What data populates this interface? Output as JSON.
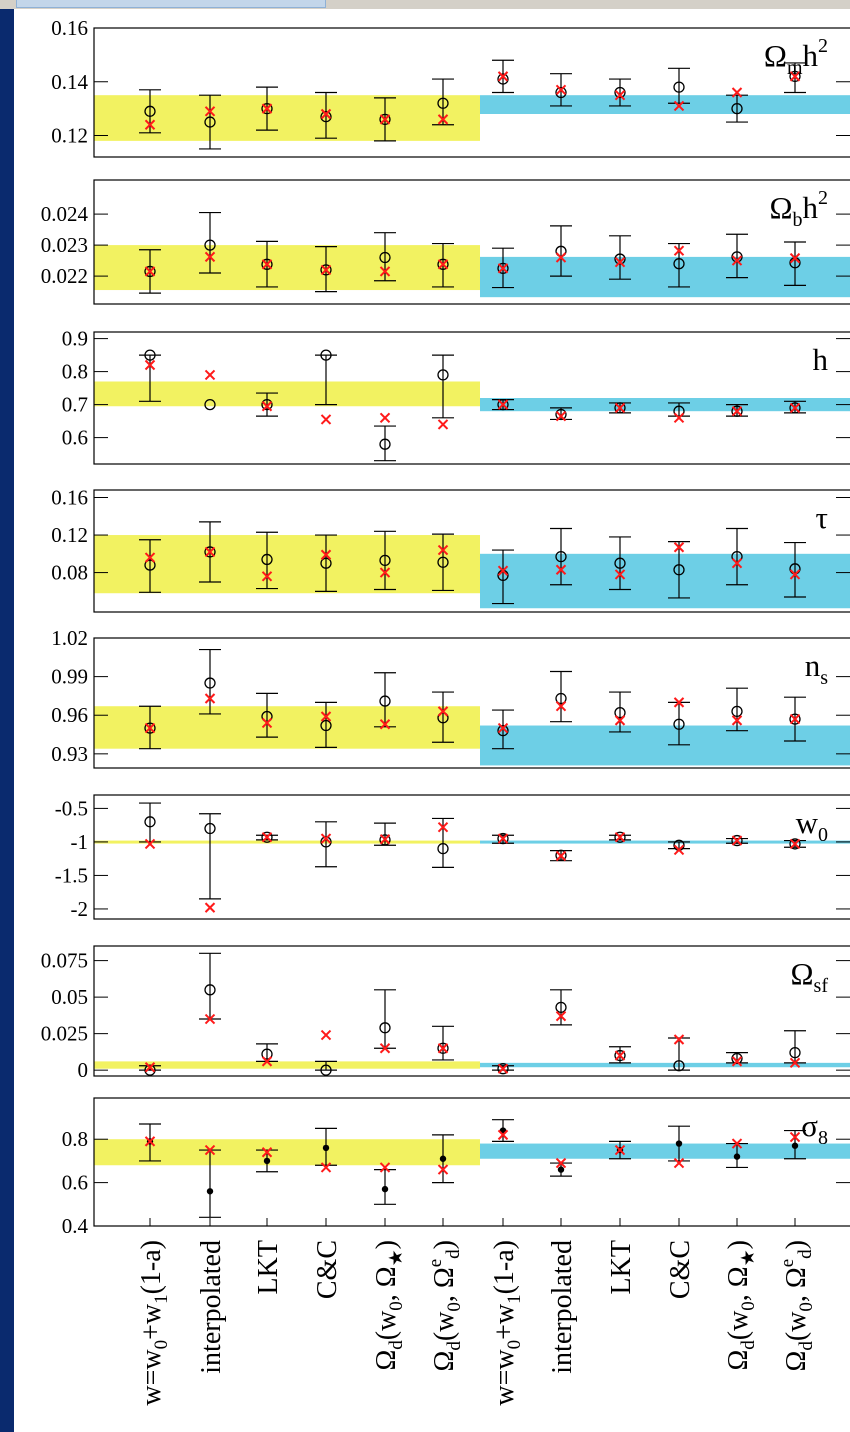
{
  "colors": {
    "yellow": "#f2f261",
    "cyan": "#6dcfe6",
    "black_marker": "#000000",
    "red_marker": "#ff1a1a"
  },
  "chart_data": {
    "type": "scatter",
    "categories": [
      "w=w₀+w₁(1-a)",
      "interpolated",
      "LKT",
      "C&C",
      "Ωd(w₀, Ω★)",
      "Ωd(w₀, Ωdᵉ)",
      "w=w₀+w₁(1-a)",
      "interpolated",
      "LKT",
      "C&C",
      "Ωd(w₀, Ω★)",
      "Ωd(w₀, Ωdᵉ)"
    ],
    "category_labels": [
      {
        "main": "w=w",
        "sub1": "0",
        "mid": "+w",
        "sub2": "1",
        "tail": "(1-a)"
      },
      {
        "main": "interpolated"
      },
      {
        "main": "LKT"
      },
      {
        "main": "C&C"
      },
      {
        "main": "Ω",
        "sub1": "d",
        "mid": "(w",
        "sub2": "0",
        "tail": ", Ω",
        "sub3": "★",
        "end": ")"
      },
      {
        "main": "Ω",
        "sub1": "d",
        "mid": "(w",
        "sub2": "0",
        "tail": ", Ω",
        "sup3": "e",
        "sub3": "d",
        "end": ")"
      },
      {
        "main": "w=w",
        "sub1": "0",
        "mid": "+w",
        "sub2": "1",
        "tail": "(1-a)"
      },
      {
        "main": "interpolated"
      },
      {
        "main": "LKT"
      },
      {
        "main": "C&C"
      },
      {
        "main": "Ω",
        "sub1": "d",
        "mid": "(w",
        "sub2": "0",
        "tail": ", Ω",
        "sub3": "★",
        "end": ")"
      },
      {
        "main": "Ω",
        "sub1": "d",
        "mid": "(w",
        "sub2": "0",
        "tail": ", Ω",
        "sup3": "e",
        "sub3": "d",
        "end": ")"
      }
    ],
    "panels": [
      {
        "label": {
          "main": "Ω",
          "sub": "m",
          "main2": "h",
          "sup": "2"
        },
        "ylim": [
          0.112,
          0.16
        ],
        "ticks": [
          0.12,
          0.14,
          0.16
        ],
        "tick_labels": [
          "0.12",
          "0.14",
          "0.16"
        ],
        "band_left": [
          0.118,
          0.135
        ],
        "band_right": [
          0.128,
          0.135
        ],
        "marker": "circle",
        "values": [
          0.129,
          0.125,
          0.13,
          0.127,
          0.126,
          0.132,
          0.141,
          0.136,
          0.136,
          0.138,
          0.13,
          0.142
        ],
        "err_low": [
          0.121,
          0.115,
          0.122,
          0.119,
          0.118,
          0.124,
          0.136,
          0.131,
          0.131,
          0.132,
          0.125,
          0.136
        ],
        "err_high": [
          0.137,
          0.135,
          0.138,
          0.136,
          0.134,
          0.141,
          0.148,
          0.143,
          0.141,
          0.145,
          0.135,
          0.147
        ],
        "best_fit": [
          0.124,
          0.129,
          0.13,
          0.128,
          0.126,
          0.126,
          0.142,
          0.137,
          0.135,
          0.131,
          0.136,
          0.142
        ]
      },
      {
        "label": {
          "main": "Ω",
          "sub": "b",
          "main2": "h",
          "sup": "2"
        },
        "ylim": [
          0.0211,
          0.0251
        ],
        "ticks": [
          0.022,
          0.023,
          0.024
        ],
        "tick_labels": [
          "0.022",
          "0.023",
          "0.024"
        ],
        "band_left": [
          0.02155,
          0.023
        ],
        "band_right": [
          0.02132,
          0.02262
        ],
        "marker": "circle",
        "values": [
          0.02215,
          0.023,
          0.02238,
          0.0222,
          0.0226,
          0.02238,
          0.02225,
          0.0228,
          0.02255,
          0.0224,
          0.02262,
          0.02243
        ],
        "err_low": [
          0.02145,
          0.0221,
          0.02165,
          0.0215,
          0.02185,
          0.02165,
          0.02163,
          0.022,
          0.0219,
          0.02165,
          0.02195,
          0.0217
        ],
        "err_high": [
          0.02285,
          0.02405,
          0.02312,
          0.02295,
          0.0234,
          0.02305,
          0.0229,
          0.02362,
          0.0233,
          0.02305,
          0.02335,
          0.0231
        ],
        "best_fit": [
          0.02215,
          0.02262,
          0.02238,
          0.0222,
          0.02215,
          0.02238,
          0.02225,
          0.0226,
          0.02245,
          0.02282,
          0.0225,
          0.02258
        ]
      },
      {
        "label": {
          "main": "h"
        },
        "ylim": [
          0.52,
          0.92
        ],
        "ticks": [
          0.6,
          0.7,
          0.8,
          0.9
        ],
        "tick_labels": [
          "0.6",
          "0.7",
          "0.8",
          "0.9"
        ],
        "band_left": [
          0.695,
          0.77
        ],
        "band_right": [
          0.68,
          0.72
        ],
        "marker": "circle",
        "values": [
          0.85,
          0.7,
          0.7,
          0.85,
          0.58,
          0.79,
          0.7,
          0.67,
          0.69,
          0.68,
          0.68,
          0.69
        ],
        "err_low": [
          0.71,
          null,
          0.665,
          0.7,
          0.53,
          0.66,
          0.685,
          0.655,
          0.675,
          0.665,
          0.665,
          0.675
        ],
        "err_high": [
          0.85,
          null,
          0.735,
          0.85,
          0.635,
          0.85,
          0.715,
          0.69,
          0.705,
          0.705,
          0.7,
          0.71
        ],
        "best_fit": [
          0.82,
          0.79,
          0.695,
          0.655,
          0.66,
          0.64,
          0.7,
          0.665,
          0.69,
          0.66,
          0.68,
          0.69
        ]
      },
      {
        "label": {
          "main": "τ"
        },
        "ylim": [
          0.038,
          0.168
        ],
        "ticks": [
          0.08,
          0.12,
          0.16
        ],
        "tick_labels": [
          "0.08",
          "0.12",
          "0.16"
        ],
        "band_left": [
          0.058,
          0.12
        ],
        "band_right": [
          0.042,
          0.1
        ],
        "marker": "circle",
        "values": [
          0.088,
          0.102,
          0.094,
          0.09,
          0.093,
          0.091,
          0.077,
          0.097,
          0.09,
          0.083,
          0.097,
          0.084
        ],
        "err_low": [
          0.059,
          0.07,
          0.063,
          0.06,
          0.062,
          0.061,
          0.047,
          0.067,
          0.062,
          0.053,
          0.067,
          0.054
        ],
        "err_high": [
          0.115,
          0.134,
          0.123,
          0.12,
          0.124,
          0.121,
          0.104,
          0.127,
          0.118,
          0.113,
          0.127,
          0.112
        ],
        "best_fit": [
          0.096,
          0.102,
          0.076,
          0.099,
          0.08,
          0.104,
          0.082,
          0.083,
          0.078,
          0.107,
          0.09,
          0.078
        ]
      },
      {
        "label": {
          "main": "n",
          "sub": "s"
        },
        "ylim": [
          0.919,
          1.02
        ],
        "ticks": [
          0.93,
          0.96,
          0.99,
          1.02
        ],
        "tick_labels": [
          "0.93",
          "0.96",
          "0.99",
          "1.02"
        ],
        "band_left": [
          0.934,
          0.967
        ],
        "band_right": [
          0.921,
          0.952
        ],
        "marker": "circle",
        "values": [
          0.95,
          0.985,
          0.959,
          0.952,
          0.971,
          0.958,
          0.948,
          0.973,
          0.962,
          0.953,
          0.963,
          0.957
        ],
        "err_low": [
          0.934,
          0.961,
          0.943,
          0.935,
          0.951,
          0.939,
          0.934,
          0.955,
          0.947,
          0.937,
          0.948,
          0.94
        ],
        "err_high": [
          0.967,
          1.011,
          0.977,
          0.97,
          0.993,
          0.978,
          0.964,
          0.994,
          0.978,
          0.97,
          0.981,
          0.974
        ],
        "best_fit": [
          0.95,
          0.973,
          0.954,
          0.959,
          0.953,
          0.963,
          0.95,
          0.967,
          0.956,
          0.97,
          0.956,
          0.957
        ]
      },
      {
        "label": {
          "main": "w",
          "sub": "0"
        },
        "ylim": [
          -2.15,
          -0.3
        ],
        "ticks": [
          -2,
          -1.5,
          -1,
          -0.5
        ],
        "tick_labels": [
          "-2",
          "-1.5",
          "-1",
          "-0.5"
        ],
        "band_left": [
          -1.02,
          -0.98
        ],
        "band_right": [
          -1.02,
          -0.98
        ],
        "marker": "circle",
        "values": [
          -0.7,
          -0.8,
          -0.93,
          -1.0,
          -0.97,
          -1.1,
          -0.95,
          -1.2,
          -0.93,
          -1.05,
          -0.98,
          -1.03
        ],
        "err_low": [
          -1.0,
          -1.85,
          -0.97,
          -1.37,
          -1.05,
          -1.38,
          -1.02,
          -1.28,
          -0.97,
          -1.1,
          -1.02,
          -1.08
        ],
        "err_high": [
          -0.42,
          -0.58,
          -0.9,
          -0.7,
          -0.72,
          -0.65,
          -0.9,
          -1.13,
          -0.9,
          -1.0,
          -0.95,
          -0.98
        ],
        "best_fit": [
          -1.03,
          -1.98,
          -0.93,
          -0.95,
          -0.96,
          -0.78,
          -0.95,
          -1.21,
          -0.93,
          -1.12,
          -0.98,
          -1.03
        ]
      },
      {
        "label": {
          "main": "Ω",
          "sub": "sf"
        },
        "ylim": [
          -0.004,
          0.085
        ],
        "ticks": [
          0,
          0.025,
          0.05,
          0.075
        ],
        "tick_labels": [
          "0",
          "0.025",
          "0.05",
          "0.075"
        ],
        "band_left": [
          0.001,
          0.006
        ],
        "band_right": [
          0.002,
          0.005
        ],
        "marker": "circle",
        "values": [
          0.0,
          0.055,
          0.011,
          0.0,
          0.029,
          0.015,
          0.001,
          0.043,
          0.01,
          0.003,
          0.008,
          0.012
        ],
        "err_low": [
          0.0,
          0.035,
          0.006,
          0.0,
          0.015,
          0.007,
          0.0,
          0.031,
          0.005,
          0.0,
          0.005,
          0.005
        ],
        "err_high": [
          0.003,
          0.08,
          0.018,
          0.006,
          0.055,
          0.03,
          0.003,
          0.055,
          0.016,
          0.022,
          0.012,
          0.027
        ],
        "best_fit": [
          0.002,
          0.035,
          0.006,
          0.024,
          0.015,
          0.015,
          0.001,
          0.037,
          0.01,
          0.021,
          0.006,
          0.005
        ]
      },
      {
        "label": {
          "main": "σ",
          "sub": "8"
        },
        "ylim": [
          0.4,
          0.99
        ],
        "ticks": [
          0.4,
          0.6,
          0.8
        ],
        "tick_labels": [
          "0.4",
          "0.6",
          "0.8"
        ],
        "band_left": [
          0.68,
          0.8
        ],
        "band_right": [
          0.71,
          0.78
        ],
        "marker": "dot",
        "values": [
          0.79,
          0.56,
          0.7,
          0.76,
          0.57,
          0.71,
          0.84,
          0.66,
          0.75,
          0.78,
          0.72,
          0.77
        ],
        "err_low": [
          0.7,
          0.44,
          0.65,
          0.68,
          0.5,
          0.6,
          0.79,
          0.63,
          0.71,
          0.7,
          0.67,
          0.71
        ],
        "err_high": [
          0.87,
          0.75,
          0.75,
          0.85,
          0.66,
          0.82,
          0.89,
          0.69,
          0.79,
          0.86,
          0.78,
          0.84
        ],
        "best_fit": [
          0.79,
          0.75,
          0.74,
          0.67,
          0.67,
          0.66,
          0.82,
          0.69,
          0.75,
          0.69,
          0.78,
          0.81
        ]
      }
    ]
  }
}
